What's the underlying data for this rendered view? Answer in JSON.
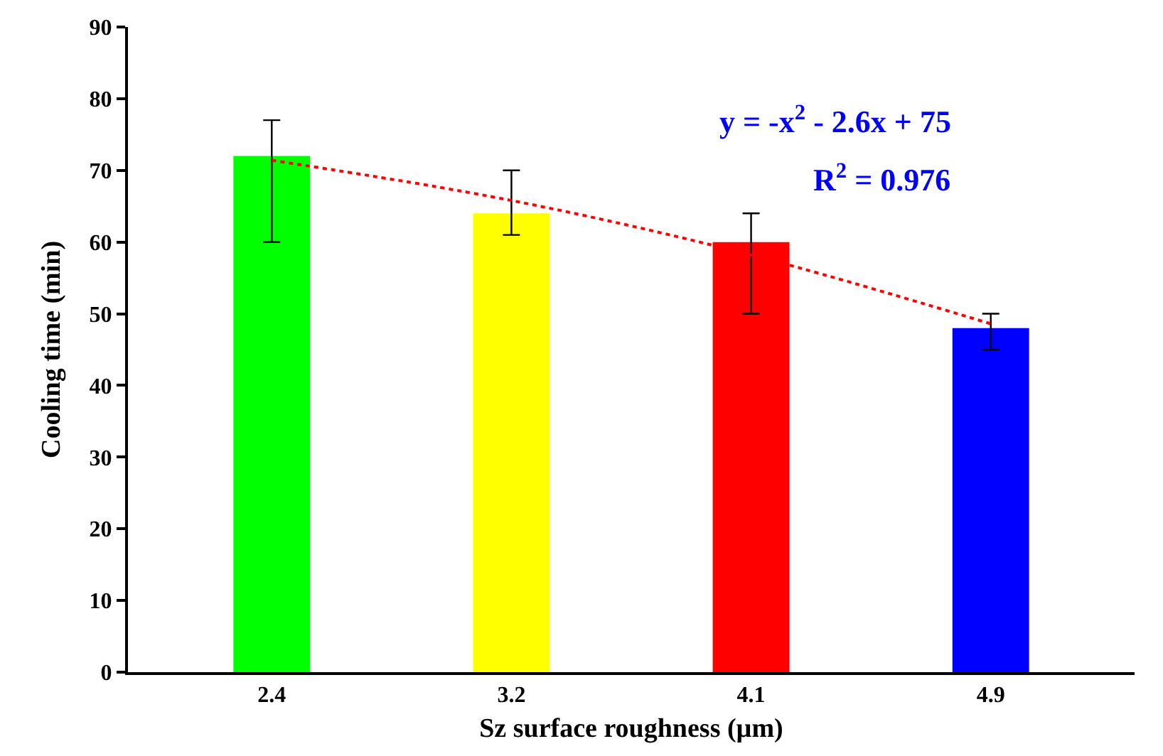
{
  "chart_data": {
    "type": "bar",
    "xlabel": "Sz surface roughness (µm)",
    "ylabel": "Cooling time (min)",
    "categories": [
      "2.4",
      "3.2",
      "4.1",
      "4.9"
    ],
    "series": [
      {
        "colors": [
          "#00ff00",
          "#ffff00",
          "#ff0000",
          "#0000ff"
        ],
        "values": [
          72,
          64,
          60,
          48
        ],
        "errors": [
          [
            60,
            77
          ],
          [
            61,
            70
          ],
          [
            50,
            64
          ],
          [
            45,
            50
          ]
        ]
      },
      {
        "type": "line",
        "x": [
          "2.4",
          "3.2",
          "4.1",
          "4.9"
        ],
        "values": [
          71.4,
          65.8,
          58.2,
          48.6
        ],
        "color": "#ff0000",
        "line_style": "dotted",
        "marker": "none"
      }
    ],
    "ylim": [
      0,
      90
    ],
    "yticks": [
      0,
      10,
      20,
      30,
      40,
      50,
      60,
      70,
      80,
      90
    ],
    "grid": false,
    "annotations": [
      "y = -x$^{2}$ - 2.6x + 75",
      "R$^{2}$ = 0.976"
    ]
  }
}
